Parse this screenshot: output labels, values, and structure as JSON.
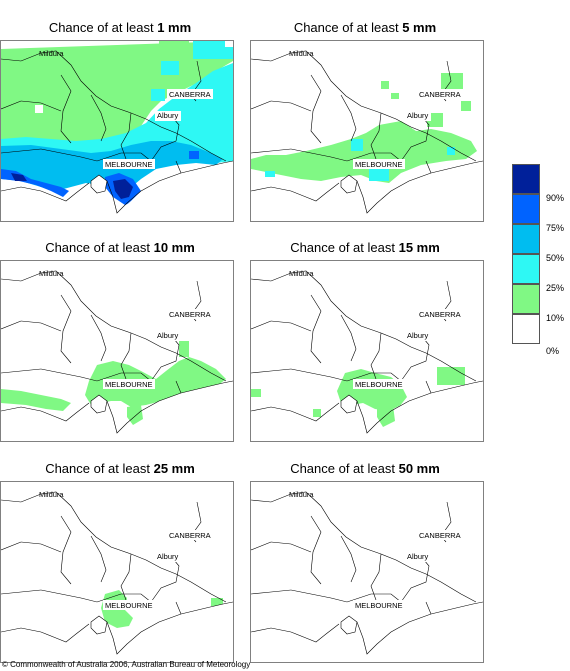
{
  "panels": [
    {
      "title_prefix": "Chance of at least ",
      "amount": "1 mm"
    },
    {
      "title_prefix": "Chance of at least ",
      "amount": "5 mm"
    },
    {
      "title_prefix": "Chance of at least ",
      "amount": "10 mm"
    },
    {
      "title_prefix": "Chance of at least ",
      "amount": "15 mm"
    },
    {
      "title_prefix": "Chance of at least ",
      "amount": "25 mm"
    },
    {
      "title_prefix": "Chance of at least ",
      "amount": "50 mm"
    }
  ],
  "place_labels": {
    "mildura": "Mildura",
    "canberra": "CANBERRA",
    "albury": "Albury",
    "melbourne": "MELBOURNE"
  },
  "legend": {
    "labels": [
      "90%",
      "75%",
      "50%",
      "25%",
      "10%",
      "0%"
    ],
    "colors": [
      "#00209a",
      "#0063ff",
      "#00bdf0",
      "#2ef8f4",
      "#80f884",
      "#ffffff"
    ]
  },
  "copyright": "© Commonwealth of Australia 2006, Australian Bureau of Meteorology"
}
